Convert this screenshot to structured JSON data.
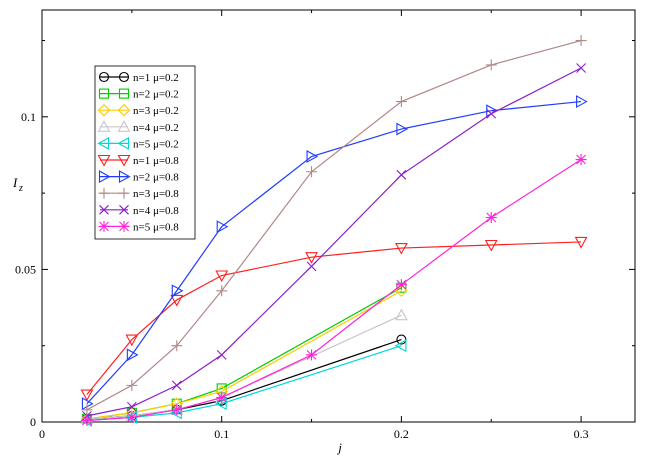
{
  "chart_data": {
    "type": "line",
    "xlabel": "j",
    "ylabel": "I",
    "ylabel_subscript": "z",
    "xlim": [
      0,
      0.33
    ],
    "ylim": [
      0,
      0.135
    ],
    "xticks": [
      0,
      0.1,
      0.2,
      0.3
    ],
    "xtick_labels": [
      "0",
      "0.1",
      "0.2",
      "0.3"
    ],
    "yticks": [
      0,
      0.05,
      0.1
    ],
    "ytick_labels": [
      "0",
      "0.05",
      "0.1"
    ],
    "grid": false,
    "legend_position": "upper-left",
    "series": [
      {
        "name": "n=1 μ=0.2",
        "color": "#000000",
        "marker": "circle",
        "x": [
          0.025,
          0.05,
          0.075,
          0.1,
          0.2
        ],
        "y": [
          0.001,
          0.002,
          0.004,
          0.007,
          0.027
        ]
      },
      {
        "name": "n=2 μ=0.2",
        "color": "#00cc00",
        "marker": "square",
        "x": [
          0.025,
          0.05,
          0.075,
          0.1,
          0.2
        ],
        "y": [
          0.001,
          0.003,
          0.006,
          0.011,
          0.044
        ]
      },
      {
        "name": "n=3 μ=0.2",
        "color": "#ffcc00",
        "marker": "diamond",
        "x": [
          0.025,
          0.05,
          0.075,
          0.1,
          0.2
        ],
        "y": [
          0.001,
          0.003,
          0.006,
          0.01,
          0.043
        ]
      },
      {
        "name": "n=4 μ=0.2",
        "color": "#c8c8c8",
        "marker": "triangle-up",
        "x": [
          0.025,
          0.05,
          0.075,
          0.1,
          0.2
        ],
        "y": [
          0.001,
          0.002,
          0.004,
          0.008,
          0.035
        ]
      },
      {
        "name": "n=5 μ=0.2",
        "color": "#00d8d8",
        "marker": "triangle-left",
        "x": [
          0.025,
          0.05,
          0.075,
          0.1,
          0.2
        ],
        "y": [
          0.0005,
          0.0015,
          0.003,
          0.006,
          0.025
        ]
      },
      {
        "name": "n=1 μ=0.8",
        "color": "#ff2020",
        "marker": "triangle-down",
        "x": [
          0.025,
          0.05,
          0.075,
          0.1,
          0.15,
          0.2,
          0.25,
          0.3
        ],
        "y": [
          0.009,
          0.027,
          0.04,
          0.048,
          0.054,
          0.057,
          0.058,
          0.059
        ]
      },
      {
        "name": "n=2 μ=0.8",
        "color": "#1e3cff",
        "marker": "triangle-right",
        "x": [
          0.025,
          0.05,
          0.075,
          0.1,
          0.15,
          0.2,
          0.25,
          0.3
        ],
        "y": [
          0.006,
          0.022,
          0.043,
          0.064,
          0.087,
          0.096,
          0.102,
          0.105
        ]
      },
      {
        "name": "n=3 μ=0.8",
        "color": "#b08888",
        "marker": "plus",
        "x": [
          0.025,
          0.05,
          0.075,
          0.1,
          0.15,
          0.2,
          0.25,
          0.3
        ],
        "y": [
          0.004,
          0.012,
          0.025,
          0.043,
          0.082,
          0.105,
          0.117,
          0.125
        ]
      },
      {
        "name": "n=4 μ=0.8",
        "color": "#8a1ecc",
        "marker": "x",
        "x": [
          0.025,
          0.05,
          0.075,
          0.1,
          0.15,
          0.2,
          0.25,
          0.3
        ],
        "y": [
          0.002,
          0.005,
          0.012,
          0.022,
          0.051,
          0.081,
          0.101,
          0.116
        ]
      },
      {
        "name": "n=5 μ=0.8",
        "color": "#ff22dd",
        "marker": "asterisk",
        "x": [
          0.025,
          0.05,
          0.075,
          0.1,
          0.15,
          0.2,
          0.25,
          0.3
        ],
        "y": [
          0.0005,
          0.0015,
          0.004,
          0.008,
          0.022,
          0.045,
          0.067,
          0.086
        ]
      }
    ]
  }
}
